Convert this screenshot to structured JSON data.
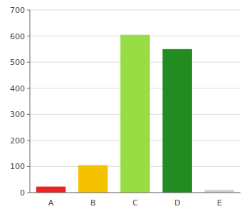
{
  "chart_data": {
    "type": "bar",
    "categories": [
      "A",
      "B",
      "C",
      "D",
      "E"
    ],
    "values": [
      23,
      105,
      605,
      550,
      10
    ],
    "colors": [
      "#ee2222",
      "#f5c200",
      "#99dd44",
      "#228b22",
      "#cccccc"
    ],
    "ylim": [
      0,
      700
    ],
    "yticks": [
      0,
      100,
      200,
      300,
      400,
      500,
      600,
      700
    ],
    "grid": true
  }
}
